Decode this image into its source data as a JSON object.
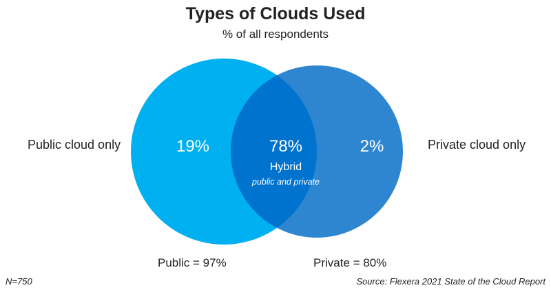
{
  "title": "Types of Clouds Used",
  "subtitle": "% of all respondents",
  "colors": {
    "public_circle": "#00B0F0",
    "private_circle": "#2E86D0",
    "overlap": "#0073CF",
    "text_on_circle": "#FFFFFF"
  },
  "public_cloud_only": {
    "label": "Public cloud only",
    "value": "19%"
  },
  "hybrid": {
    "value": "78%",
    "label": "Hybrid",
    "sublabel": "public and private"
  },
  "private_cloud_only": {
    "label": "Private cloud only",
    "value": "2%"
  },
  "public_total": "Public = 97%",
  "private_total": "Private = 80%",
  "sample_size": "N=750",
  "source": "Source: Flexera 2021 State of the Cloud Report"
}
